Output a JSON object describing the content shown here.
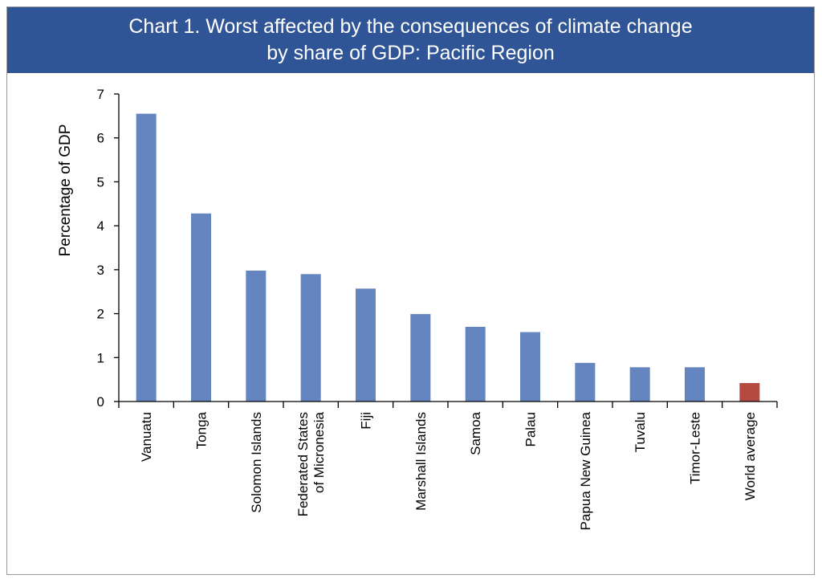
{
  "chart_data": {
    "type": "bar",
    "title": [
      "Chart 1. Worst affected by the consequences of climate change",
      "by share of GDP: Pacific Region"
    ],
    "xlabel": "",
    "ylabel": "Percentage of GDP",
    "ylim": [
      0,
      7
    ],
    "yticks": [
      "0",
      "1",
      "2",
      "3",
      "4",
      "5",
      "6",
      "7"
    ],
    "categories": [
      [
        "Vanuatu"
      ],
      [
        "Tonga"
      ],
      [
        "Solomon Islands"
      ],
      [
        "Federated States",
        "of Micronesia"
      ],
      [
        "Fiji"
      ],
      [
        "Marshall Islands"
      ],
      [
        "Samoa"
      ],
      [
        "Palau"
      ],
      [
        "Papua New Guinea"
      ],
      [
        "Tuvalu"
      ],
      [
        "Timor-Leste"
      ],
      [
        "World average"
      ]
    ],
    "values": [
      6.55,
      4.28,
      2.98,
      2.9,
      2.57,
      1.99,
      1.7,
      1.58,
      0.88,
      0.78,
      0.78,
      0.42
    ],
    "bar_colors": [
      "#6585c0",
      "#6585c0",
      "#6585c0",
      "#6585c0",
      "#6585c0",
      "#6585c0",
      "#6585c0",
      "#6585c0",
      "#6585c0",
      "#6585c0",
      "#6585c0",
      "#b54a43"
    ],
    "grid": false,
    "legend": "none"
  },
  "colors": {
    "title_bg": "#2f5597",
    "bar": "#6585c0",
    "highlight_bar": "#b54a43"
  }
}
